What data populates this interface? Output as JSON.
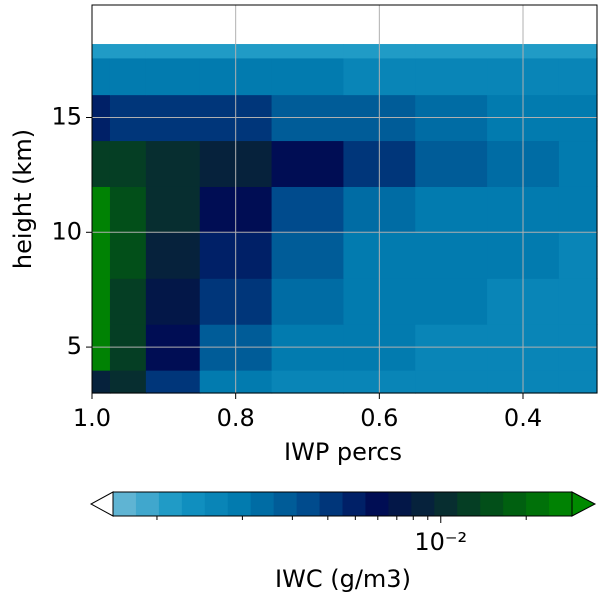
{
  "chart_data": {
    "type": "contour",
    "xlabel": "IWP percs",
    "ylabel": "height (km)",
    "x": [
      1.0,
      0.95,
      0.9,
      0.8,
      0.7,
      0.6,
      0.5,
      0.4,
      0.3
    ],
    "y": [
      3,
      5,
      7,
      9,
      11,
      13,
      15,
      17,
      18.2
    ],
    "z": [
      [
        0.008,
        0.01,
        0.004,
        0.002,
        0.0015,
        0.0015,
        0.0015,
        0.0015,
        0.0015
      ],
      [
        0.025,
        0.012,
        0.006,
        0.003,
        0.002,
        0.0018,
        0.0015,
        0.0015,
        0.0015
      ],
      [
        0.03,
        0.013,
        0.007,
        0.004,
        0.0025,
        0.002,
        0.0018,
        0.0015,
        0.0015
      ],
      [
        0.03,
        0.015,
        0.008,
        0.005,
        0.003,
        0.002,
        0.002,
        0.0018,
        0.0015
      ],
      [
        0.025,
        0.015,
        0.01,
        0.006,
        0.0035,
        0.0025,
        0.002,
        0.002,
        0.0018
      ],
      [
        0.012,
        0.012,
        0.01,
        0.008,
        0.006,
        0.004,
        0.003,
        0.0025,
        0.002
      ],
      [
        0.005,
        0.004,
        0.004,
        0.004,
        0.003,
        0.003,
        0.0025,
        0.002,
        0.002
      ],
      [
        0.002,
        0.0018,
        0.0018,
        0.0018,
        0.0018,
        0.0015,
        0.0015,
        0.0015,
        0.0015
      ],
      [
        0.0012,
        0.0012,
        0.0012,
        0.0012,
        0.0012,
        0.0012,
        0.0012,
        0.0012,
        0.0012
      ]
    ],
    "xlim": [
      1.0,
      0.297
    ],
    "ylim": [
      3,
      19.9
    ],
    "xticks": [
      {
        "value": 1.0,
        "label": "1.0"
      },
      0.8,
      0.6,
      0.4
    ],
    "yticks": [
      5,
      10,
      15
    ],
    "grid": true,
    "colorbar": {
      "label": "IWC (g/m3)",
      "log": true,
      "lim": [
        0.0007,
        0.029
      ],
      "levels": 20,
      "colors": [
        "#6fbad6",
        "#1596c4",
        "#0079ad",
        "#004a8c",
        "#000c55",
        "#082a32",
        "#005a12",
        "#008a00"
      ],
      "ticks": [
        {
          "value": 0.01,
          "label": "10⁻²"
        }
      ],
      "minor_ticks": [
        0.001,
        0.002,
        0.003,
        0.004,
        0.005,
        0.006,
        0.007,
        0.008,
        0.009,
        0.02
      ]
    }
  }
}
